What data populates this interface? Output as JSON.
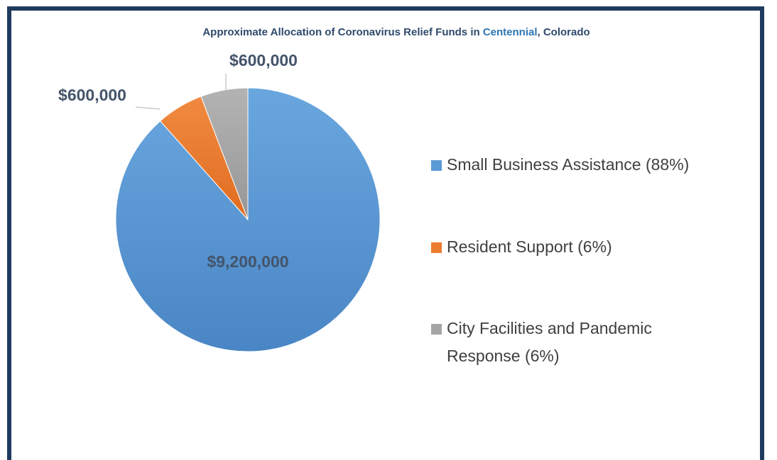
{
  "chart_data": {
    "type": "pie",
    "title": {
      "before": "Approximate Allocation of Coronavirus Relief Funds in ",
      "highlight": "Centennial",
      "after": ", Colorado"
    },
    "slices": [
      {
        "legend": "Small Business Assistance (88%)",
        "legend_lines": [
          "Small Business Assistance (88%)"
        ],
        "value": 9200000,
        "label": "$9,200,000",
        "color": "#5b9bd5"
      },
      {
        "legend": "Resident Support (6%)",
        "legend_lines": [
          "Resident Support (6%)"
        ],
        "value": 600000,
        "label": "$600,000",
        "color": "#ed7d31"
      },
      {
        "legend": "City Facilities and Pandemic Response (6%)",
        "legend_lines": [
          "City Facilities and Pandemic",
          "Response (6%)"
        ],
        "value": 600000,
        "label": "$600,000",
        "color": "#a5a5a5"
      }
    ],
    "legend_position": "right",
    "colors": {
      "title": "#2f4a6d",
      "title_highlight": "#2e74b5",
      "data_label": "#44546a",
      "legend_text": "#404040",
      "frame": "#1f3a5f"
    }
  }
}
